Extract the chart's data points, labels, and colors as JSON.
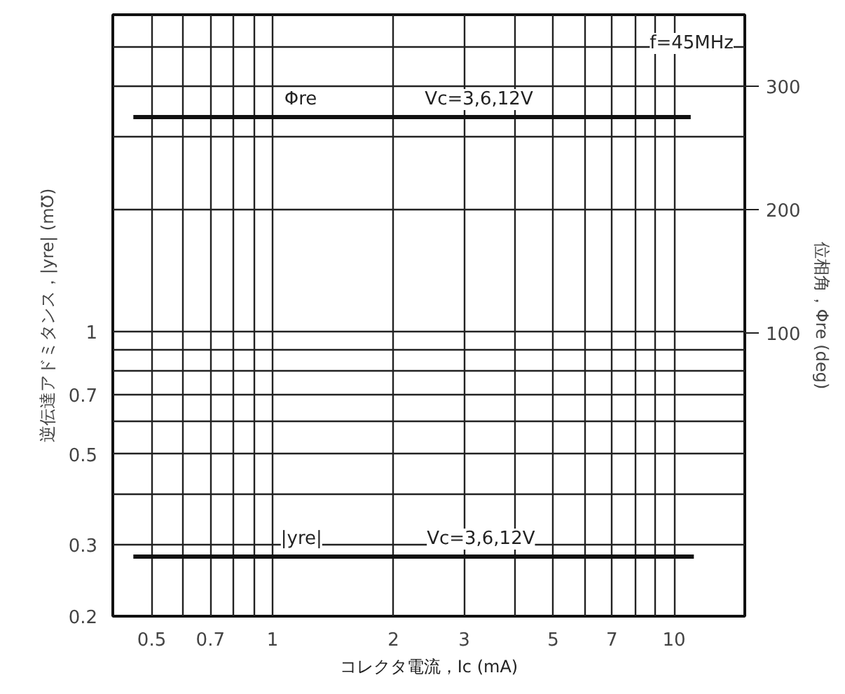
{
  "chart_data": {
    "type": "line",
    "xlabel": "コレクタ電流，Ic (mA)",
    "ylabel": "逆伝達アドミタンス，|yre| (m℧)",
    "y2label": "位相角，Φre (deg)",
    "log": "xy",
    "grid": true,
    "marker": "none",
    "line_style": "solid",
    "xlim": [
      0.4,
      15
    ],
    "ylim": [
      0.2,
      6
    ],
    "y2lim": [
      -130,
      358
    ],
    "xticks": [
      0.5,
      {
        "value": 0.6,
        "label": null
      },
      0.7,
      {
        "value": 0.8,
        "label": null
      },
      {
        "value": 0.9,
        "label": null
      },
      1,
      2,
      3,
      {
        "value": 4,
        "label": null
      },
      5,
      {
        "value": 6,
        "label": null
      },
      7,
      {
        "value": 8,
        "label": null
      },
      {
        "value": 9,
        "label": null
      },
      10
    ],
    "yticks": [
      0.2,
      0.3,
      {
        "value": 0.4,
        "label": null
      },
      0.5,
      {
        "value": 0.6,
        "label": null
      },
      0.7,
      {
        "value": 0.8,
        "label": null
      },
      {
        "value": 0.9,
        "label": null
      },
      1,
      {
        "value": 2,
        "label": null
      },
      {
        "value": 3,
        "label": null
      },
      {
        "value": 4,
        "label": null
      },
      {
        "value": 5,
        "label": null
      }
    ],
    "y2ticks": [
      100,
      200,
      300
    ],
    "series": [
      {
        "name": "Φre",
        "color": "#111111",
        "axis": "y2",
        "x": [
          0.45,
          11
        ],
        "values": [
          275,
          275
        ]
      },
      {
        "name": "|yre|",
        "color": "#111111",
        "x": [
          0.45,
          11.2
        ],
        "values": [
          0.28,
          0.28
        ]
      }
    ],
    "annotations": [
      "Vc=3,6,12V",
      "Vc=3,6,12V",
      "f=45MHz"
    ]
  }
}
